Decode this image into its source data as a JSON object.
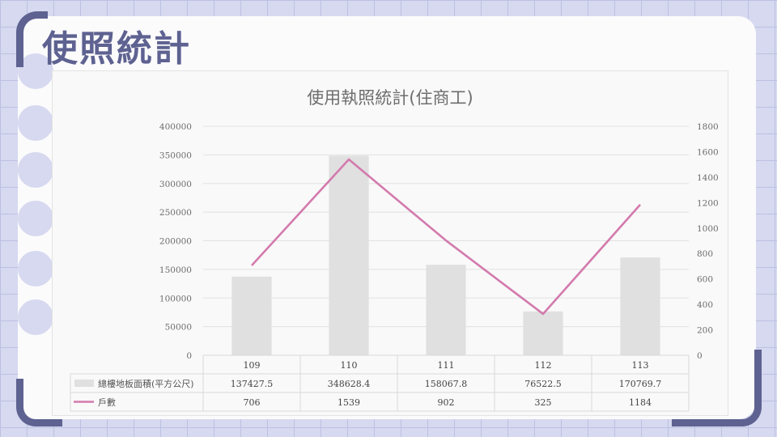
{
  "page": {
    "title": "使照統計"
  },
  "colors": {
    "accent": "#5e6291",
    "bar": "#e0e0e0",
    "line": "#d37aad"
  },
  "chart_data": {
    "type": "bar",
    "title": "使用執照統計(住商工)",
    "categories": [
      "109",
      "110",
      "111",
      "112",
      "113"
    ],
    "series": [
      {
        "name": "總樓地板面積(平方公尺)",
        "type": "bar",
        "axis": "left",
        "values": [
          137427.5,
          348628.4,
          158067.8,
          76522.5,
          170769.7
        ],
        "labels": [
          "137427.5",
          "348628.4",
          "158067.8",
          "76522.5",
          "170769.7"
        ]
      },
      {
        "name": "戶數",
        "type": "line",
        "axis": "right",
        "values": [
          706,
          1539,
          902,
          325,
          1184
        ],
        "labels": [
          "706",
          "1539",
          "902",
          "325",
          "1184"
        ]
      }
    ],
    "y_left": {
      "min": 0,
      "max": 400000,
      "ticks": [
        "0",
        "50000",
        "100000",
        "150000",
        "200000",
        "250000",
        "300000",
        "350000",
        "400000"
      ]
    },
    "y_right": {
      "min": 0,
      "max": 1800,
      "ticks": [
        "0",
        "200",
        "400",
        "600",
        "800",
        "1000",
        "1200",
        "1400",
        "1600",
        "1800"
      ]
    },
    "grid": true,
    "legend": "data-table"
  }
}
